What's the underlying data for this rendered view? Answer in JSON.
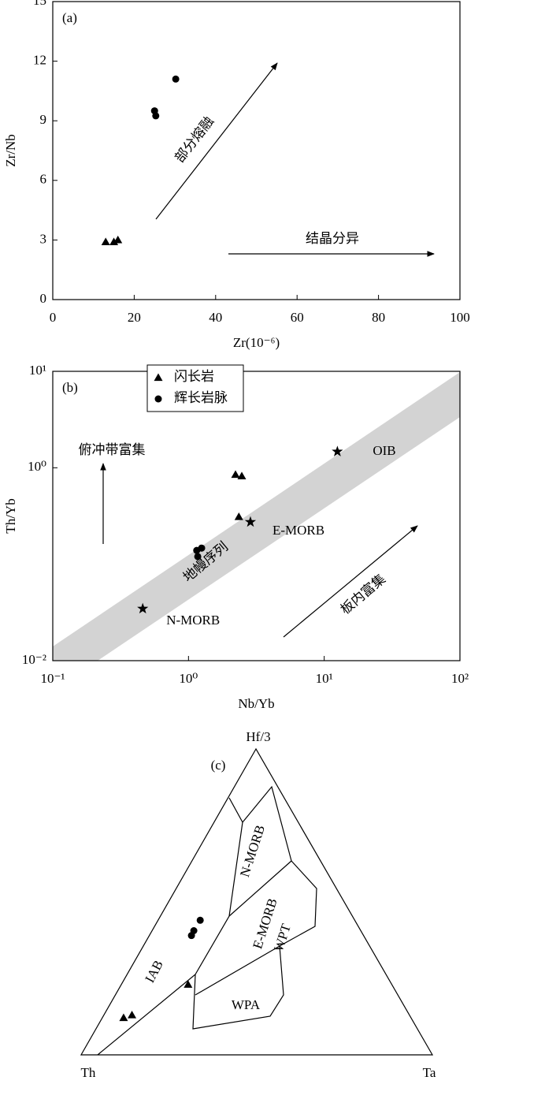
{
  "chart_data": [
    {
      "type": "scatter",
      "label": "(a)",
      "xlabel": "Zr(10⁻⁶)",
      "ylabel": "Zr/Nb",
      "xlim": [
        0,
        100
      ],
      "xticks": [
        0,
        20,
        40,
        60,
        80,
        100
      ],
      "ylim": [
        0,
        15
      ],
      "yticks": [
        0,
        3,
        6,
        9,
        12,
        15
      ],
      "series": [
        {
          "marker": "triangle",
          "color": "#000000",
          "x": [
            13,
            15,
            16
          ],
          "values": [
            2.9,
            2.9,
            3.0
          ]
        },
        {
          "marker": "circle",
          "color": "#000000",
          "x": [
            25,
            25.3,
            30.2
          ],
          "values": [
            9.5,
            9.25,
            11.1
          ]
        }
      ],
      "annotations": [
        "部分熔融",
        "结晶分异"
      ]
    },
    {
      "type": "scatter",
      "label": "(b)",
      "xlabel": "Nb/Yb",
      "ylabel": "Th/Yb",
      "xscale": "log",
      "yscale": "log",
      "xlim": [
        0.1,
        100
      ],
      "xticks": [
        {
          "value": 0.1,
          "label": "10⁻¹"
        },
        {
          "value": 1,
          "label": "10⁰"
        },
        {
          "value": 10,
          "label": "10¹"
        },
        {
          "value": 100,
          "label": "10²"
        }
      ],
      "ylim": [
        0.01,
        10
      ],
      "yticks": [
        {
          "value": 0.01,
          "label": "10⁻²"
        },
        {
          "value": 1,
          "label": "10⁰"
        },
        {
          "value": 10,
          "label": "10¹"
        }
      ],
      "legend": "upper left",
      "series": [
        {
          "name": "闪长岩",
          "marker": "triangle",
          "color": "#000000",
          "x": [
            2.22,
            2.47,
            2.35
          ],
          "values": [
            0.85,
            0.82,
            0.31
          ]
        },
        {
          "name": "辉长岩脉",
          "marker": "circle",
          "color": "#000000",
          "x": [
            1.15,
            1.25,
            1.17
          ],
          "values": [
            0.139,
            0.147,
            0.12
          ]
        },
        {
          "marker": "star",
          "color": "#000000",
          "x": [
            0.46,
            2.86,
            12.5
          ],
          "values": [
            0.0346,
            0.274,
            1.47
          ],
          "point_labels": [
            "N-MORB",
            "E-MORB",
            "OIB"
          ]
        }
      ],
      "band_color": "#d3d3d3",
      "annotations": [
        "俯冲带富集",
        "地幔序列",
        "板内富集"
      ]
    },
    {
      "type": "ternary",
      "label": "(c)",
      "corners": [
        "Hf/3",
        "Th",
        "Ta"
      ],
      "series": [
        {
          "marker": "triangle",
          "color": "#000000",
          "hf": [
            0.12,
            0.13,
            0.23
          ],
          "th": [
            0.81,
            0.79,
            0.58
          ],
          "ta": [
            0.06,
            0.08,
            0.19
          ]
        },
        {
          "marker": "circle",
          "color": "#000000",
          "hf": [
            0.44,
            0.41,
            0.39
          ],
          "th": [
            0.44,
            0.48,
            0.49
          ],
          "ta": [
            0.12,
            0.12,
            0.12
          ]
        }
      ],
      "fields": [
        "IAB",
        "N-MORB",
        "E-MORB",
        "WPT",
        "WPA"
      ]
    }
  ]
}
